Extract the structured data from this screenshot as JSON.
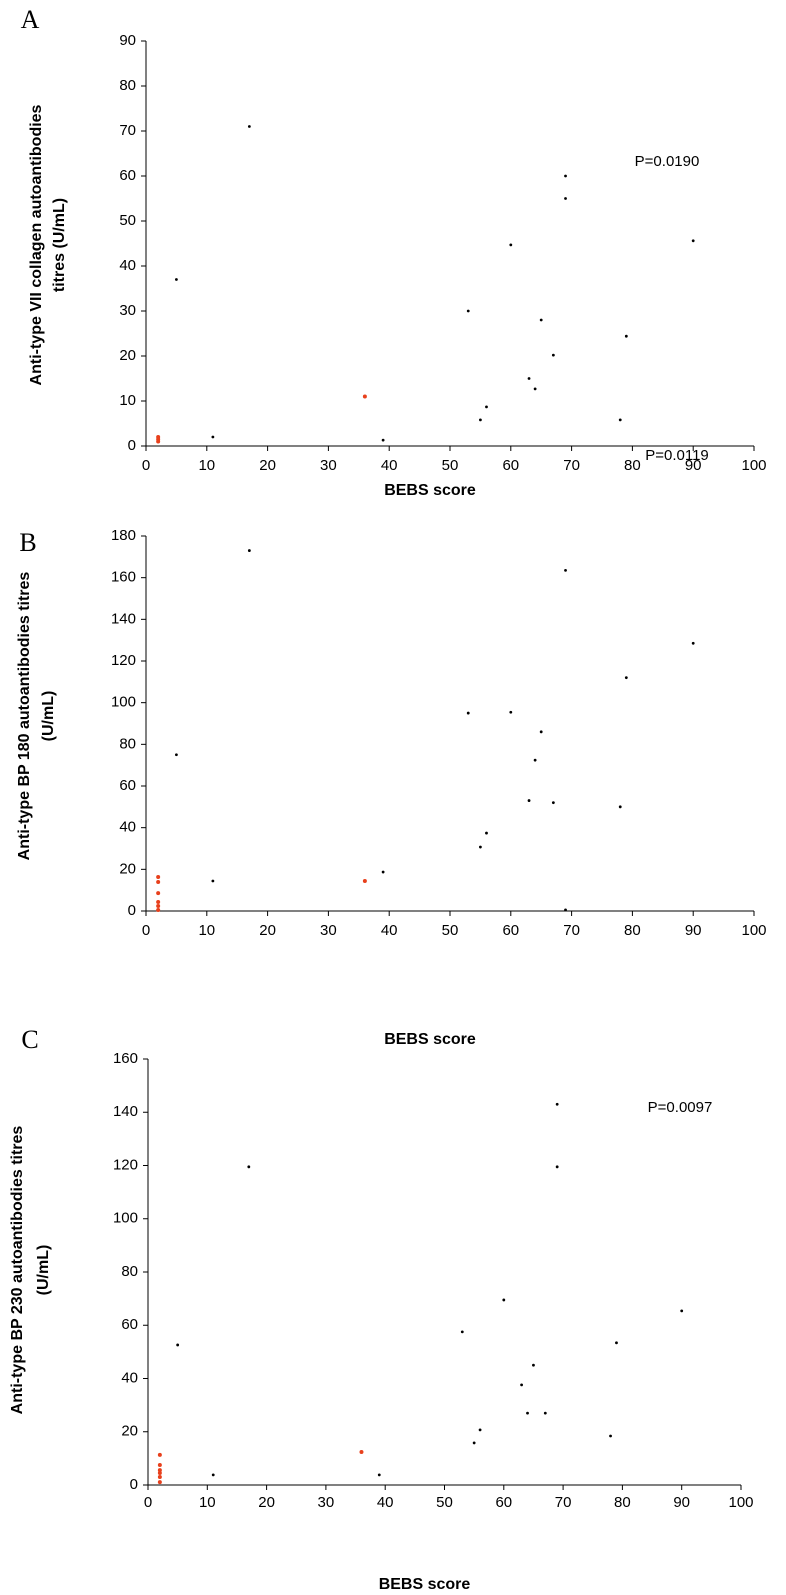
{
  "chart_data": [
    {
      "type": "scatter",
      "panel": "A",
      "ylabel": [
        "Anti-type VII collagen autoantibodies",
        "titres  (U/mL)"
      ],
      "xlabel": "BEBS score",
      "annotation": "P=0.0190",
      "xlim": [
        0,
        100
      ],
      "xticks": [
        0,
        10,
        20,
        30,
        40,
        50,
        60,
        70,
        80,
        90,
        100
      ],
      "ylim": [
        0,
        90
      ],
      "yticks": [
        0,
        10,
        20,
        30,
        40,
        50,
        60,
        70,
        80,
        90
      ],
      "series": [
        {
          "color": "#000000",
          "x": [
            11,
            17,
            5,
            39,
            53,
            55,
            56,
            60,
            63,
            64,
            65,
            67,
            69,
            69,
            79,
            78,
            90
          ],
          "y": [
            2,
            71,
            37,
            1.3,
            30,
            5.8,
            8.7,
            44.7,
            15,
            12.7,
            28,
            20.2,
            55,
            60,
            24.4,
            5.8,
            45.6
          ]
        },
        {
          "color": "#e8401c",
          "x": [
            2,
            2,
            2,
            36
          ],
          "y": [
            1,
            1.5,
            2,
            11
          ]
        }
      ]
    },
    {
      "type": "scatter",
      "panel": "B",
      "ylabel": [
        "Anti-type BP 180 autoantibodies titres",
        "(U/mL)"
      ],
      "xlabel": "BEBS score",
      "annotation": "P=0.0119",
      "xlim": [
        0,
        100
      ],
      "xticks": [
        0,
        10,
        20,
        30,
        40,
        50,
        60,
        70,
        80,
        90,
        100
      ],
      "ylim": [
        0,
        180
      ],
      "yticks": [
        0,
        20,
        40,
        60,
        80,
        100,
        120,
        140,
        160,
        180
      ],
      "series": [
        {
          "color": "#000000",
          "x": [
            17,
            69,
            90,
            79,
            53,
            60,
            65,
            64,
            5,
            63,
            67,
            78,
            56,
            55,
            39,
            11,
            69
          ],
          "y": [
            173,
            163.5,
            128.5,
            112,
            95,
            95.4,
            86,
            72.4,
            75,
            53,
            52,
            50,
            37.4,
            30.7,
            18.7,
            14.4,
            0.5
          ]
        },
        {
          "color": "#e8401c",
          "x": [
            2,
            2,
            2,
            2,
            2,
            2,
            36
          ],
          "y": [
            16.3,
            13.9,
            8.6,
            4.3,
            2.4,
            0.5,
            14.4
          ]
        }
      ]
    },
    {
      "type": "scatter",
      "panel": "C",
      "ylabel": [
        "Anti-type BP 230 autoantibodies titres",
        "(U/mL)"
      ],
      "xlabel": "BEBS score",
      "annotation": "P=0.0097",
      "xlim": [
        0,
        100
      ],
      "xticks": [
        0,
        10,
        20,
        30,
        40,
        50,
        60,
        70,
        80,
        90,
        100
      ],
      "ylim": [
        0,
        160
      ],
      "yticks": [
        0,
        20,
        40,
        60,
        80,
        100,
        120,
        140,
        160
      ],
      "series": [
        {
          "color": "#000000",
          "x": [
            17,
            69,
            69,
            90,
            60,
            53,
            79,
            5,
            65,
            63,
            64,
            67,
            56,
            78,
            55,
            11,
            39
          ],
          "y": [
            119.5,
            143,
            119.5,
            65.4,
            69.5,
            57.5,
            53.4,
            52.6,
            45,
            37.6,
            27,
            27,
            20.7,
            18.4,
            15.8,
            3.8,
            3.8
          ]
        },
        {
          "color": "#e8401c",
          "x": [
            2,
            2,
            2,
            2,
            2,
            2,
            36
          ],
          "y": [
            11.3,
            7.5,
            5.6,
            4.5,
            3,
            1.1,
            12.4
          ]
        }
      ]
    }
  ]
}
